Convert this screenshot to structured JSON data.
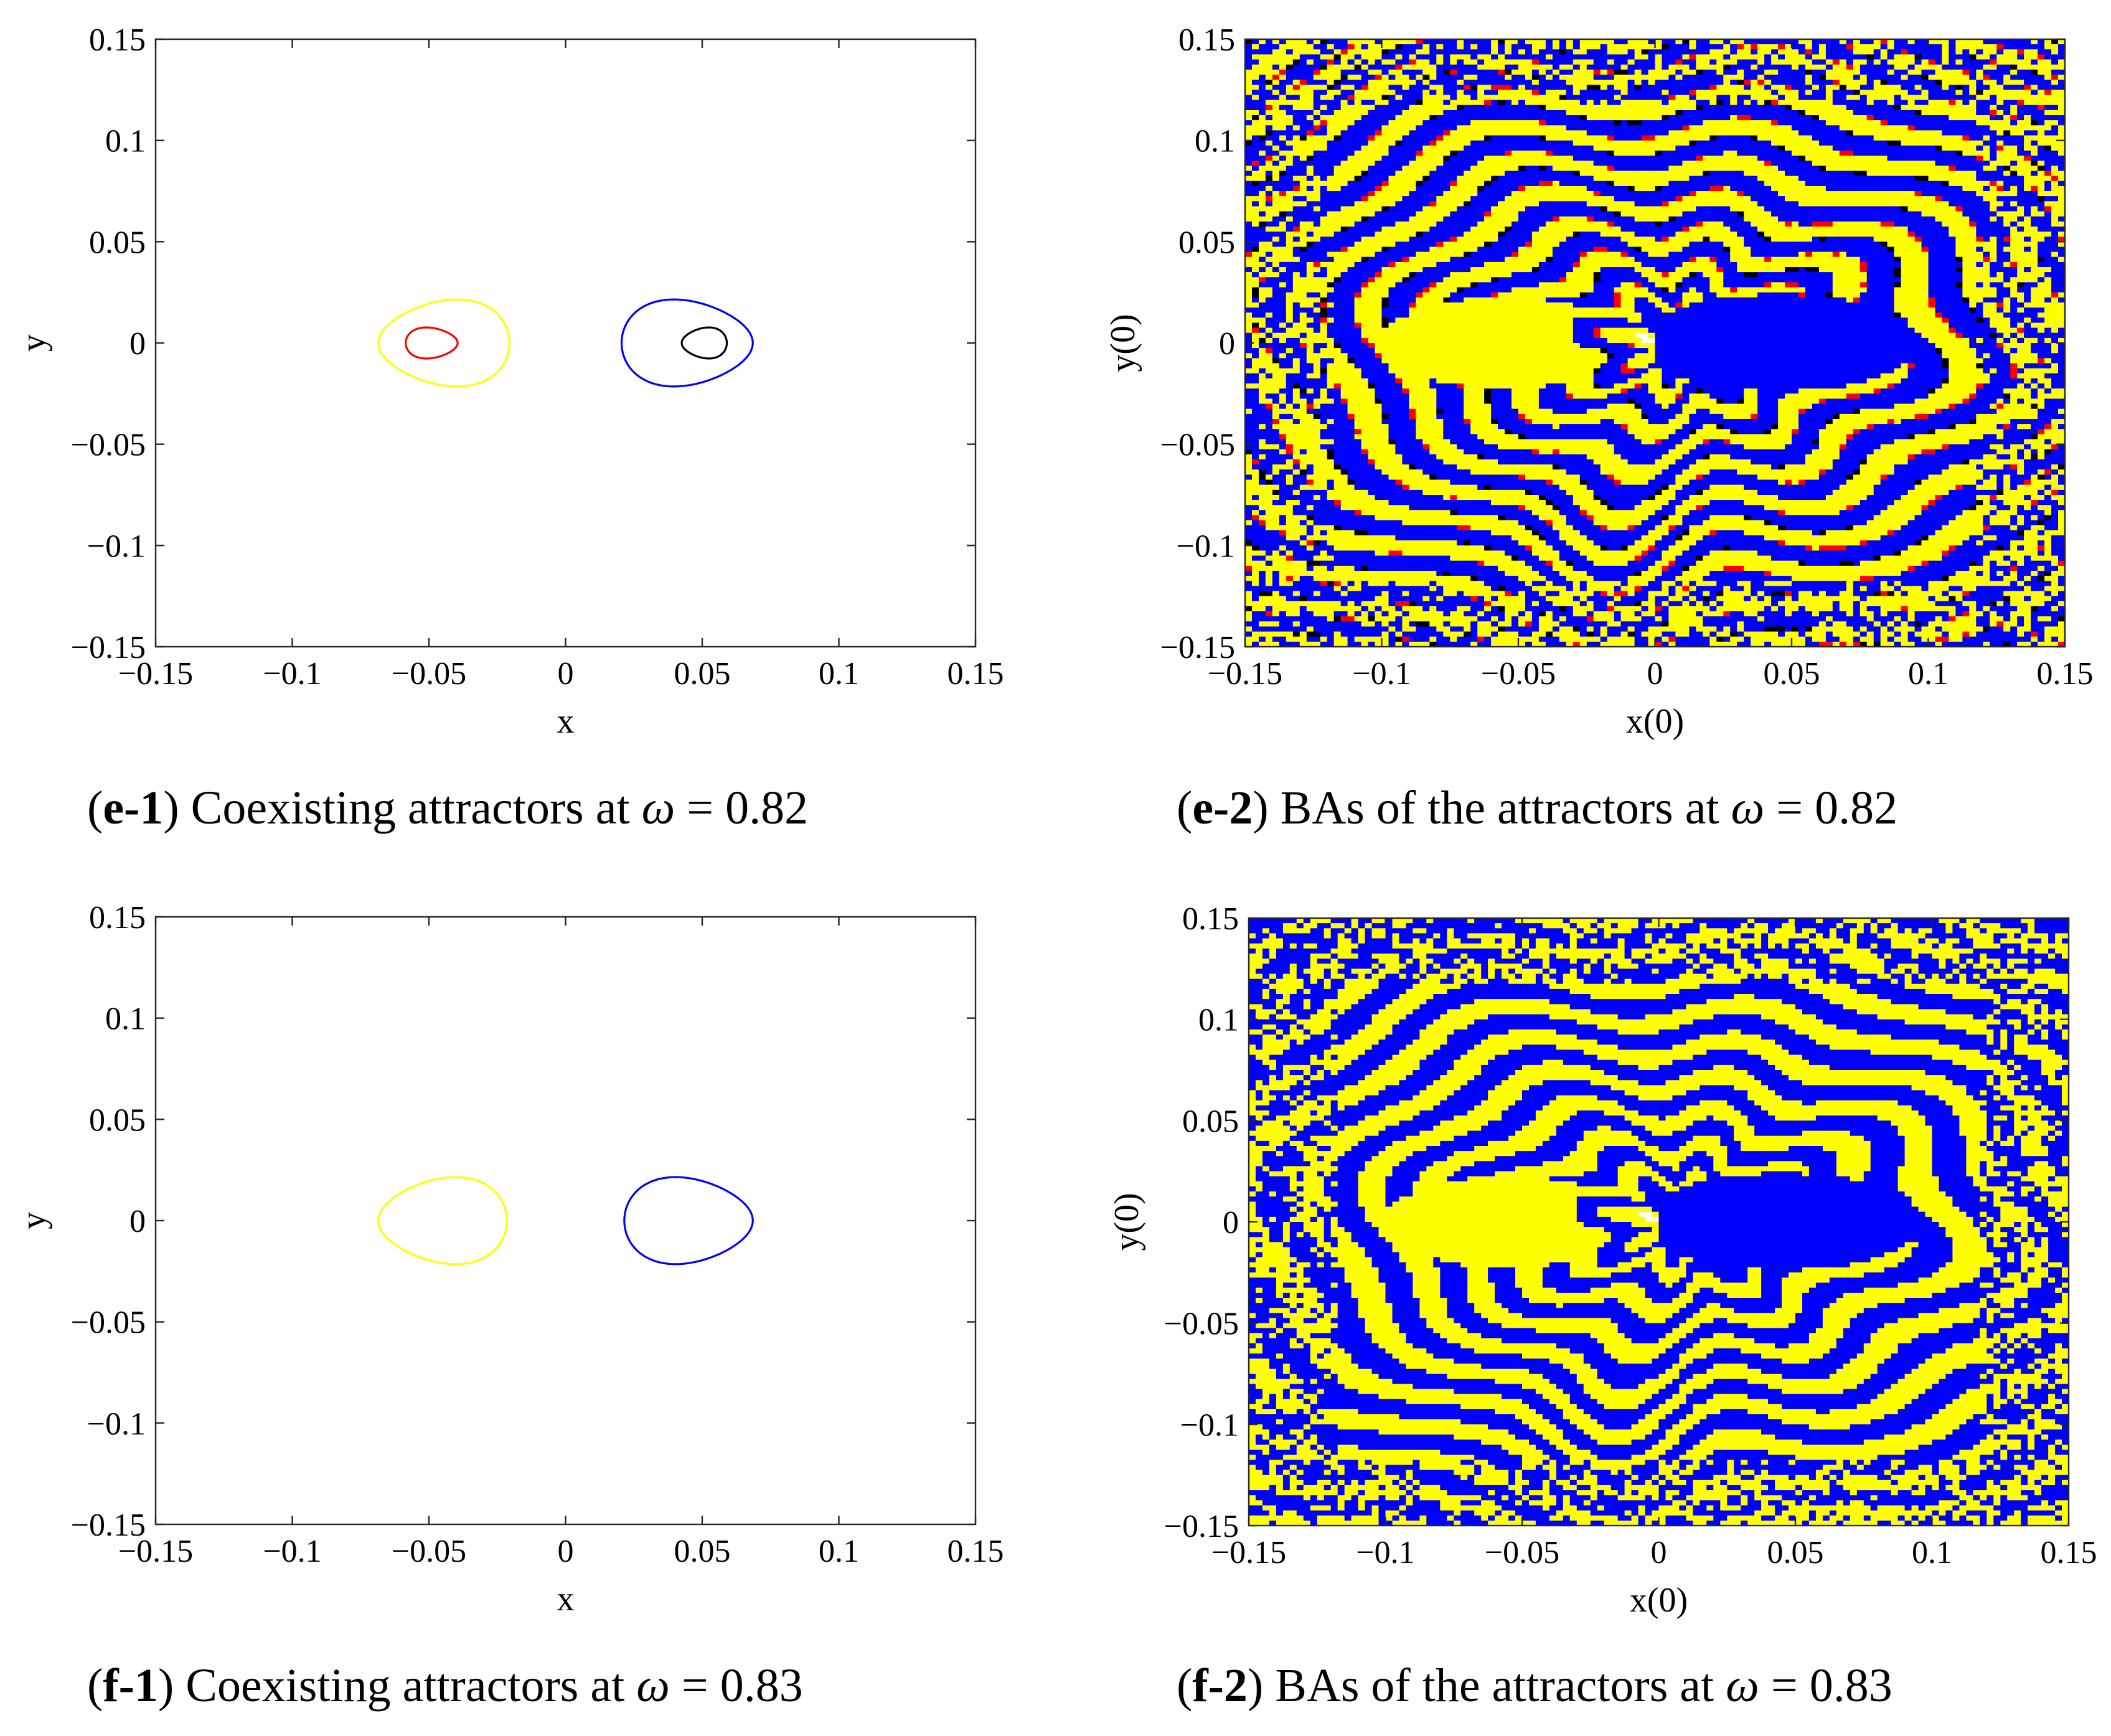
{
  "figure": {
    "panels": [
      {
        "id": "e-1",
        "caption": {
          "label": "e-1",
          "text": "Coexisting attractors at",
          "symbol": "ω",
          "eq": "=",
          "value": "0.82"
        },
        "chart_data": {
          "type": "line",
          "title": "",
          "xlabel": "x",
          "ylabel": "y",
          "xlim": [
            -0.15,
            0.15
          ],
          "ylim": [
            -0.15,
            0.15
          ],
          "xticks": [
            -0.15,
            -0.1,
            -0.05,
            0,
            0.05,
            0.1,
            0.15
          ],
          "yticks": [
            -0.15,
            -0.1,
            -0.05,
            0,
            0.05,
            0.1,
            0.15
          ],
          "xtick_labels": [
            "−0.15",
            "−0.1",
            "−0.05",
            "0",
            "0.05",
            "0.1",
            "0.15"
          ],
          "ytick_labels": [
            "−0.15",
            "−0.1",
            "−0.05",
            "0",
            "0.05",
            "0.1",
            "0.15"
          ],
          "series": [
            {
              "name": "yellow attractor",
              "color": "#ffff00",
              "center": [
                -0.05,
                0
              ],
              "left": -0.0685,
              "right": -0.0205,
              "half_height": 0.021,
              "skew": 1
            },
            {
              "name": "red attractor",
              "color": "#ff0000",
              "center": [
                -0.0502,
                0
              ],
              "left": -0.0585,
              "right": -0.0395,
              "half_height": 0.0075,
              "skew": -1
            },
            {
              "name": "blue attractor",
              "color": "#0000ff",
              "center": [
                0.05,
                0
              ],
              "left": 0.0205,
              "right": 0.0685,
              "half_height": 0.021,
              "skew": -1
            },
            {
              "name": "black attractor",
              "color": "#000000",
              "center": [
                0.0502,
                0
              ],
              "left": 0.0425,
              "right": 0.059,
              "half_height": 0.0075,
              "skew": 1
            }
          ]
        }
      },
      {
        "id": "e-2",
        "caption": {
          "label": "e-2",
          "text": "BAs of the attractors at",
          "symbol": "ω",
          "eq": "=",
          "value": "0.82"
        },
        "chart_data": {
          "type": "heatmap",
          "title": "",
          "xlabel": "x(0)",
          "ylabel": "y(0)",
          "xlim": [
            -0.15,
            0.15
          ],
          "ylim": [
            -0.15,
            0.15
          ],
          "xticks": [
            -0.15,
            -0.1,
            -0.05,
            0,
            0.05,
            0.1,
            0.15
          ],
          "yticks": [
            -0.15,
            -0.1,
            -0.05,
            0,
            0.05,
            0.1,
            0.15
          ],
          "xtick_labels": [
            "−0.15",
            "−0.1",
            "−0.05",
            "0",
            "0.05",
            "0.1",
            "0.15"
          ],
          "ytick_labels": [
            "−0.15",
            "−0.1",
            "−0.05",
            "0",
            "0.05",
            "0.1",
            "0.15"
          ],
          "grid_resolution": 200,
          "classes": [
            {
              "name": "basin of yellow attractor",
              "color": "#ffff00"
            },
            {
              "name": "basin of blue attractor",
              "color": "#0000ff"
            },
            {
              "name": "basin of red attractor",
              "color": "#ff0000"
            },
            {
              "name": "basin of black attractor",
              "color": "#000000"
            }
          ]
        }
      },
      {
        "id": "f-1",
        "caption": {
          "label": "f-1",
          "text": "Coexisting attractors at",
          "symbol": "ω",
          "eq": "=",
          "value": "0.83"
        },
        "chart_data": {
          "type": "line",
          "title": "",
          "xlabel": "x",
          "ylabel": "y",
          "xlim": [
            -0.15,
            0.15
          ],
          "ylim": [
            -0.15,
            0.15
          ],
          "xticks": [
            -0.15,
            -0.1,
            -0.05,
            0,
            0.05,
            0.1,
            0.15
          ],
          "yticks": [
            -0.15,
            -0.1,
            -0.05,
            0,
            0.05,
            0.1,
            0.15
          ],
          "xtick_labels": [
            "−0.15",
            "−0.1",
            "−0.05",
            "0",
            "0.05",
            "0.1",
            "0.15"
          ],
          "ytick_labels": [
            "−0.15",
            "−0.1",
            "−0.05",
            "0",
            "0.05",
            "0.1",
            "0.15"
          ],
          "series": [
            {
              "name": "yellow attractor",
              "color": "#ffff00",
              "center": [
                -0.05,
                0
              ],
              "left": -0.0685,
              "right": -0.0215,
              "half_height": 0.021,
              "skew": 1
            },
            {
              "name": "blue attractor",
              "color": "#0000ff",
              "center": [
                0.05,
                0
              ],
              "left": 0.0215,
              "right": 0.0685,
              "half_height": 0.021,
              "skew": -1
            }
          ]
        }
      },
      {
        "id": "f-2",
        "caption": {
          "label": "f-2",
          "text": "BAs of the attractors at",
          "symbol": "ω",
          "eq": "=",
          "value": "0.83"
        },
        "chart_data": {
          "type": "heatmap",
          "title": "",
          "xlabel": "x(0)",
          "ylabel": "y(0)",
          "xlim": [
            -0.15,
            0.15
          ],
          "ylim": [
            -0.15,
            0.15
          ],
          "xticks": [
            -0.15,
            -0.1,
            -0.05,
            0,
            0.05,
            0.1,
            0.15
          ],
          "yticks": [
            -0.15,
            -0.1,
            -0.05,
            0,
            0.05,
            0.1,
            0.15
          ],
          "xtick_labels": [
            "−0.15",
            "−0.1",
            "−0.05",
            "0",
            "0.05",
            "0.1",
            "0.15"
          ],
          "ytick_labels": [
            "−0.15",
            "−0.1",
            "−0.05",
            "0",
            "0.05",
            "0.1",
            "0.15"
          ],
          "grid_resolution": 200,
          "classes": [
            {
              "name": "basin of yellow attractor",
              "color": "#ffff00"
            },
            {
              "name": "basin of blue attractor",
              "color": "#0000ff"
            }
          ]
        }
      }
    ]
  }
}
